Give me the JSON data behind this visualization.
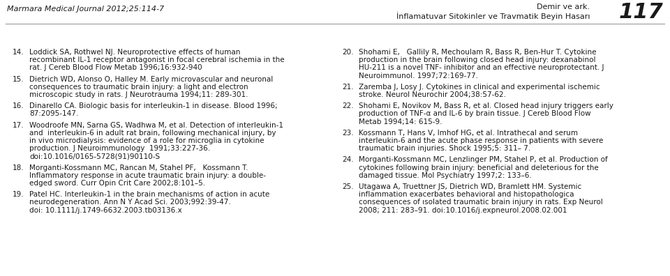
{
  "header_left": "Marmara Medical Journal 2012;25:114-7",
  "header_right_top": "Demir ve ark.",
  "header_right_middle": "İnflamatuvar Sitokinler ve Travmatik Beyin Hasarı",
  "header_right_number": "117",
  "bg_color": "#ffffff",
  "text_color": "#1a1a1a",
  "left_references": [
    {
      "num": "14.",
      "lines": [
        "Loddick SA, Rothwel NJ. Neuroprotective effects of human",
        "recombinant IL-1 receptor antagonist in focal cerebral ischemia in the",
        "rat. J Cereb Blood Flow Metab 1996;16:932-940"
      ]
    },
    {
      "num": "15.",
      "lines": [
        "Dietrich WD, Alonso O, Halley M. Early microvascular and neuronal",
        "consequences to traumatic brain injury: a light and electron",
        "microscopic study in rats. J Neurotrauma 1994;11: 289-301."
      ]
    },
    {
      "num": "16.",
      "lines": [
        "Dinarello CA. Biologic basis for interleukin-1 in disease. Blood 1996;",
        "87:2095-147."
      ]
    },
    {
      "num": "17.",
      "lines": [
        "Woodroofe MN, Sarna GS, Wadhwa M, et al. Detection of interleukin-1",
        "and  interleukin-6 in adult rat brain, following mechanical injury, by",
        "in vivo microdialysis: evidence of a role for microglia in cytokine",
        "production. J Neuroimmunology  1991;33:227-36.",
        "doi:10.1016/0165-5728(91)90110-S"
      ]
    },
    {
      "num": "18.",
      "lines": [
        "Morganti-Kossmann MC, Rancan M, Stahel PF,   Kossmann T.",
        "Inflammatory response in acute traumatic brain injury: a double-",
        "edged sword. Curr Opin Crit Care 2002;8:101–5."
      ]
    },
    {
      "num": "19.",
      "lines": [
        "Patel HC. Interleukin-1 in the brain mechanisms of action in acute",
        "neurodegeneration. Ann N Y Acad Sci. 2003;992:39-47.",
        "doi: 10.1111/j.1749-6632.2003.tb03136.x"
      ]
    }
  ],
  "right_references": [
    {
      "num": "20.",
      "lines": [
        "Shohami E,   Gallily R, Mechoulam R, Bass R, Ben-Hur T. Cytokine",
        "production in the brain following closed head injury: dexanabinol",
        "HU-211 is a novel TNF- inhibitor and an effective neuroprotectant. J",
        "Neuroimmunol. 1997;72:169-77."
      ]
    },
    {
      "num": "21.",
      "lines": [
        "Zaremba J, Losy J. Cytokines in clinical and experimental ischemic",
        "stroke. Neurol Neurochir 2004;38:57-62."
      ]
    },
    {
      "num": "22.",
      "lines": [
        "Shohami E, Novikov M, Bass R, et al. Closed head injury triggers early",
        "production of TNF-α and IL-6 by brain tissue. J Cereb Blood Flow",
        "Metab 1994;14: 615-9."
      ]
    },
    {
      "num": "23.",
      "lines": [
        "Kossmann T, Hans V, Imhof HG, et al. Intrathecal and serum",
        "interleukin-6 and the acute phase response in patients with severe",
        "traumatic brain injuries. Shock 1995;5: 311– 7."
      ]
    },
    {
      "num": "24.",
      "lines": [
        "Morganti-Kossmann MC, Lenzlinger PM, Stahel P, et al. Production of",
        "cytokines following brain injury: beneficial and deleterious for the",
        "damaged tissue. Mol Psychiatry 1997;2: 133–6."
      ]
    },
    {
      "num": "25.",
      "lines": [
        "Utagawa A, Truettner JS, Dietrich WD, Bramlett HM. Systemic",
        "inflammation exacerbates behavioral and histopathologica",
        "consequences of ısolated traumatic brain injury in rats. Exp Neurol",
        "2008; 211: 283–91. doi:10.1016/j.expneurol.2008.02.001"
      ]
    }
  ]
}
